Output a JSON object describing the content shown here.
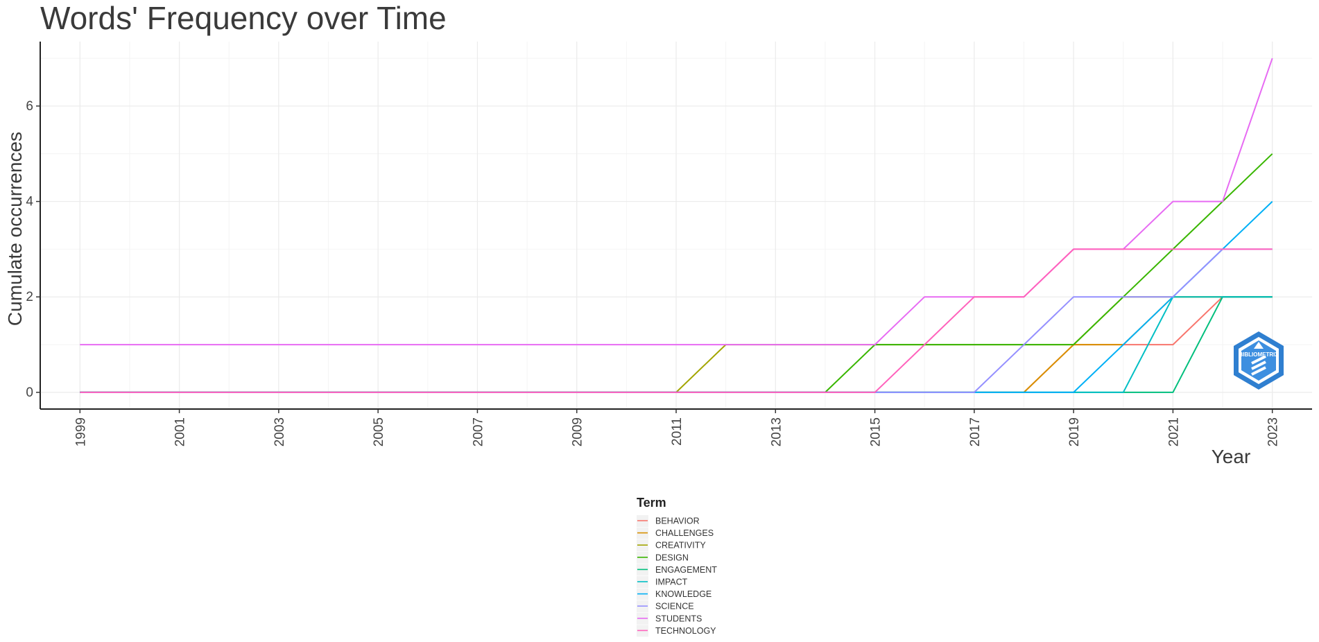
{
  "chart_data": {
    "type": "line",
    "title": "Words' Frequency over Time",
    "xlabel": "Year",
    "ylabel": "Cumulate occurrences",
    "x": [
      1999,
      2000,
      2001,
      2002,
      2003,
      2004,
      2005,
      2006,
      2007,
      2008,
      2009,
      2010,
      2011,
      2012,
      2013,
      2014,
      2015,
      2016,
      2017,
      2018,
      2019,
      2020,
      2021,
      2022,
      2023
    ],
    "x_ticks": [
      "1999",
      "2001",
      "2003",
      "2005",
      "2007",
      "2009",
      "2011",
      "2013",
      "2015",
      "2017",
      "2019",
      "2021",
      "2023"
    ],
    "y_ticks": [
      "0",
      "2",
      "4",
      "6"
    ],
    "xlim": [
      1998.2,
      2023.8
    ],
    "ylim": [
      -0.35,
      7.35
    ],
    "grid": true,
    "legend": {
      "title": "Term",
      "placement": "bottom"
    },
    "series": [
      {
        "name": "BEHAVIOR",
        "color": "#F8766D",
        "values": [
          0,
          0,
          0,
          0,
          0,
          0,
          0,
          0,
          0,
          0,
          0,
          0,
          0,
          0,
          0,
          0,
          0,
          0,
          0,
          0,
          1,
          1,
          1,
          2,
          2
        ]
      },
      {
        "name": "CHALLENGES",
        "color": "#D89000",
        "values": [
          0,
          0,
          0,
          0,
          0,
          0,
          0,
          0,
          0,
          0,
          0,
          0,
          0,
          0,
          0,
          0,
          0,
          0,
          0,
          0,
          1,
          1,
          2,
          2,
          2
        ]
      },
      {
        "name": "CREATIVITY",
        "color": "#A3A500",
        "values": [
          0,
          0,
          0,
          0,
          0,
          0,
          0,
          0,
          0,
          0,
          0,
          0,
          0,
          1,
          1,
          1,
          1,
          1,
          1,
          1,
          1,
          2,
          2,
          2,
          2
        ]
      },
      {
        "name": "DESIGN",
        "color": "#39B600",
        "values": [
          0,
          0,
          0,
          0,
          0,
          0,
          0,
          0,
          0,
          0,
          0,
          0,
          0,
          0,
          0,
          0,
          1,
          1,
          1,
          1,
          1,
          2,
          3,
          4,
          5
        ]
      },
      {
        "name": "ENGAGEMENT",
        "color": "#00BF7D",
        "values": [
          0,
          0,
          0,
          0,
          0,
          0,
          0,
          0,
          0,
          0,
          0,
          0,
          0,
          0,
          0,
          0,
          0,
          0,
          0,
          0,
          0,
          0,
          0,
          2,
          2
        ]
      },
      {
        "name": "IMPACT",
        "color": "#00BFC4",
        "values": [
          0,
          0,
          0,
          0,
          0,
          0,
          0,
          0,
          0,
          0,
          0,
          0,
          0,
          0,
          0,
          0,
          0,
          0,
          0,
          0,
          0,
          0,
          2,
          2,
          2
        ]
      },
      {
        "name": "KNOWLEDGE",
        "color": "#00B0F6",
        "values": [
          0,
          0,
          0,
          0,
          0,
          0,
          0,
          0,
          0,
          0,
          0,
          0,
          0,
          0,
          0,
          0,
          0,
          0,
          0,
          0,
          0,
          1,
          2,
          3,
          4
        ]
      },
      {
        "name": "SCIENCE",
        "color": "#9590FF",
        "values": [
          0,
          0,
          0,
          0,
          0,
          0,
          0,
          0,
          0,
          0,
          0,
          0,
          0,
          0,
          0,
          0,
          0,
          0,
          0,
          1,
          2,
          2,
          2,
          3,
          3
        ]
      },
      {
        "name": "STUDENTS",
        "color": "#E76BF3",
        "values": [
          1,
          1,
          1,
          1,
          1,
          1,
          1,
          1,
          1,
          1,
          1,
          1,
          1,
          1,
          1,
          1,
          1,
          2,
          2,
          2,
          3,
          3,
          4,
          4,
          7
        ]
      },
      {
        "name": "TECHNOLOGY",
        "color": "#FF62BC",
        "values": [
          0,
          0,
          0,
          0,
          0,
          0,
          0,
          0,
          0,
          0,
          0,
          0,
          0,
          0,
          0,
          0,
          0,
          1,
          2,
          2,
          3,
          3,
          3,
          3,
          3
        ]
      }
    ]
  },
  "logo": {
    "text": "BIBLIOMETRIX",
    "color": "#2f7fd0"
  }
}
